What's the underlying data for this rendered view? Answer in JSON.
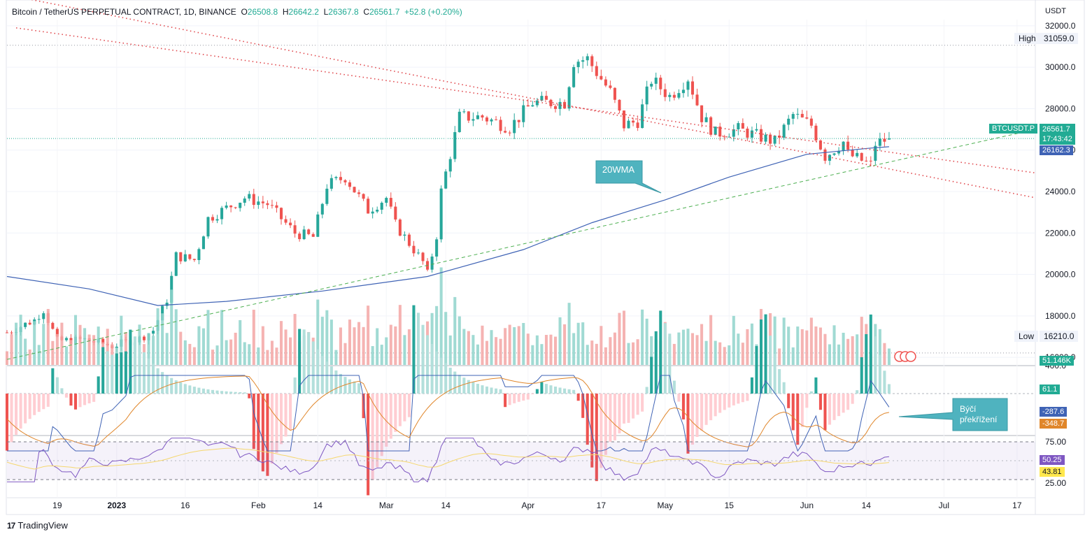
{
  "header": {
    "symbol": "Bitcoin / TetherUS PERPETUAL CONTRACT, 1D, BINANCE",
    "open_label": "O",
    "open": "26508.8",
    "high_label": "H",
    "high": "26642.2",
    "low_label": "L",
    "low": "26367.8",
    "close_label": "C",
    "close": "26561.7",
    "change": "+52.8 (+0.20%)"
  },
  "footer": {
    "brand": "TradingView",
    "logo": "17"
  },
  "price_axis": {
    "unit": "USDT",
    "ticks": [
      "32000.0",
      "30000.0",
      "28000.0",
      "26000.0",
      "24000.0",
      "22000.0",
      "20000.0",
      "18000.0",
      "16000.0"
    ],
    "high_label": "High",
    "high_value": "31059.0",
    "low_label": "Low",
    "low_value": "16210.0",
    "symbol_tag": "BTCUSDT.P",
    "last_price": "26561.7",
    "countdown": "17:43:42",
    "ma_value": "26162.3",
    "volume_value": "51.146K"
  },
  "macd_axis": {
    "ticks": [
      "400.0"
    ],
    "hist_value": "61.1",
    "macd_value": "-287.6",
    "signal_value": "-348.7"
  },
  "rsi_axis": {
    "ticks": [
      "75.00",
      "25.00"
    ],
    "rsi_value": "50.25",
    "ma_value": "43.81"
  },
  "time_axis": [
    "19",
    "2023",
    "16",
    "Feb",
    "14",
    "Mar",
    "14",
    "Apr",
    "17",
    "May",
    "15",
    "Jun",
    "14",
    "Jul",
    "17"
  ],
  "annotations": {
    "wma_label": "20WMA",
    "cross_label_1": "Býčí",
    "cross_label_2": "překřížení"
  },
  "colors": {
    "up": "#26a69a",
    "down": "#ef5350",
    "ma": "#3f63b5",
    "signal": "#e0862a",
    "trend": "#e0474c",
    "rsi": "#7e57c2",
    "callout": "#4fb3bf"
  },
  "chart_data": {
    "type": "candlestick",
    "title": "Bitcoin / TetherUS PERPETUAL CONTRACT, 1D, BINANCE",
    "y_unit": "USDT",
    "ylim": [
      15700,
      32300
    ],
    "x_range": [
      "2022-12-08",
      "2023-07-21"
    ],
    "last": {
      "open": 26508.8,
      "high": 26642.2,
      "low": 26367.8,
      "close": 26561.7,
      "change": 52.8,
      "change_pct": 0.2
    },
    "period_high": 31059.0,
    "period_low": 16210.0,
    "close_path": [
      [
        "2022-12-08",
        17200
      ],
      [
        "2022-12-14",
        17800
      ],
      [
        "2022-12-16",
        18300
      ],
      [
        "2022-12-19",
        16800
      ],
      [
        "2022-12-25",
        16850
      ],
      [
        "2022-12-31",
        16550
      ],
      [
        "2023-01-06",
        16900
      ],
      [
        "2023-01-09",
        17300
      ],
      [
        "2023-01-12",
        18800
      ],
      [
        "2023-01-14",
        20900
      ],
      [
        "2023-01-18",
        20700
      ],
      [
        "2023-01-21",
        22700
      ],
      [
        "2023-01-29",
        23700
      ],
      [
        "2023-02-03",
        23400
      ],
      [
        "2023-02-09",
        22000
      ],
      [
        "2023-02-13",
        21800
      ],
      [
        "2023-02-16",
        24300
      ],
      [
        "2023-02-20",
        24700
      ],
      [
        "2023-02-25",
        23100
      ],
      [
        "2023-03-01",
        23700
      ],
      [
        "2023-03-03",
        22400
      ],
      [
        "2023-03-09",
        20600
      ],
      [
        "2023-03-10",
        20000
      ],
      [
        "2023-03-12",
        21900
      ],
      [
        "2023-03-13",
        24000
      ],
      [
        "2023-03-17",
        27600
      ],
      [
        "2023-03-22",
        27600
      ],
      [
        "2023-03-28",
        27100
      ],
      [
        "2023-04-02",
        28300
      ],
      [
        "2023-04-09",
        28300
      ],
      [
        "2023-04-11",
        30300
      ],
      [
        "2023-04-14",
        30400
      ],
      [
        "2023-04-19",
        28800
      ],
      [
        "2023-04-22",
        27200
      ],
      [
        "2023-04-25",
        27400
      ],
      [
        "2023-04-28",
        29400
      ],
      [
        "2023-05-02",
        28600
      ],
      [
        "2023-05-06",
        29500
      ],
      [
        "2023-05-09",
        27600
      ],
      [
        "2023-05-12",
        26800
      ],
      [
        "2023-05-17",
        27000
      ],
      [
        "2023-05-25",
        26400
      ],
      [
        "2023-05-29",
        27700
      ],
      [
        "2023-06-02",
        27200
      ],
      [
        "2023-06-05",
        25700
      ],
      [
        "2023-06-09",
        26400
      ],
      [
        "2023-06-10",
        25800
      ],
      [
        "2023-06-15",
        25300
      ],
      [
        "2023-06-16",
        26300
      ],
      [
        "2023-06-19",
        26561.7
      ]
    ],
    "wma20_path": [
      [
        "2022-12-08",
        19900
      ],
      [
        "2022-12-26",
        19300
      ],
      [
        "2023-01-10",
        18500
      ],
      [
        "2023-01-25",
        18700
      ],
      [
        "2023-02-15",
        19200
      ],
      [
        "2023-03-10",
        19900
      ],
      [
        "2023-03-31",
        21200
      ],
      [
        "2023-04-15",
        22500
      ],
      [
        "2023-05-01",
        23600
      ],
      [
        "2023-05-15",
        24700
      ],
      [
        "2023-06-01",
        25800
      ],
      [
        "2023-06-15",
        26100
      ],
      [
        "2023-06-19",
        26162.3
      ]
    ],
    "ma_last": 26162.3,
    "trendlines": [
      {
        "style": "dotted",
        "color": "red",
        "points": [
          [
            "2022-12-10",
            31900
          ],
          [
            "2023-07-21",
            24900
          ]
        ]
      },
      {
        "style": "dotted",
        "color": "red",
        "points": [
          [
            "2022-12-01",
            33800
          ],
          [
            "2023-07-21",
            23700
          ]
        ]
      },
      {
        "style": "dashed",
        "color": "green",
        "points": [
          [
            "2022-12-08",
            15900
          ],
          [
            "2023-07-21",
            27000
          ]
        ]
      }
    ],
    "volume_last": "51.146K",
    "macd": {
      "hist_last": 61.1,
      "macd_last": -287.6,
      "signal_last": -348.7,
      "axis_ticks": [
        400.0
      ]
    },
    "rsi": {
      "last": 50.25,
      "ma_last": 43.81,
      "bands": [
        75,
        25
      ]
    },
    "x_ticks": [
      "19",
      "2023",
      "16",
      "Feb",
      "14",
      "Mar",
      "14",
      "Apr",
      "17",
      "May",
      "15",
      "Jun",
      "14",
      "Jul",
      "17"
    ]
  }
}
